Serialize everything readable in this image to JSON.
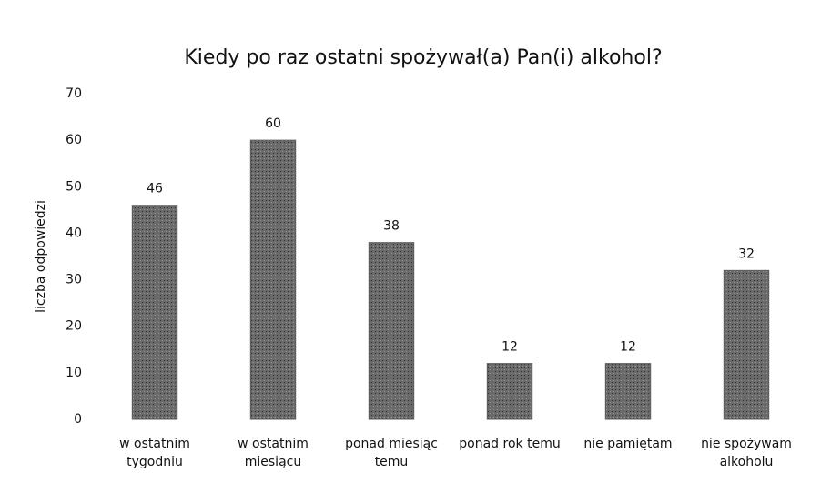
{
  "chart_data": {
    "type": "bar",
    "title": "Kiedy po raz ostatni spożywał(a) Pan(i) alkohol?",
    "y_label": "liczba odpowiedzi",
    "categories": [
      "w ostatnim tygodniu",
      "w ostatnim miesiącu",
      "ponad miesiąc temu",
      "ponad rok temu",
      "nie pamiętam",
      "nie spożywam alkoholu"
    ],
    "values": [
      46,
      60,
      38,
      12,
      12,
      32
    ],
    "color": "#5c5c5c",
    "ylim": [
      0,
      70
    ],
    "yticks": [
      0,
      10,
      20,
      30,
      40,
      50,
      60,
      70
    ],
    "grid": false
  }
}
